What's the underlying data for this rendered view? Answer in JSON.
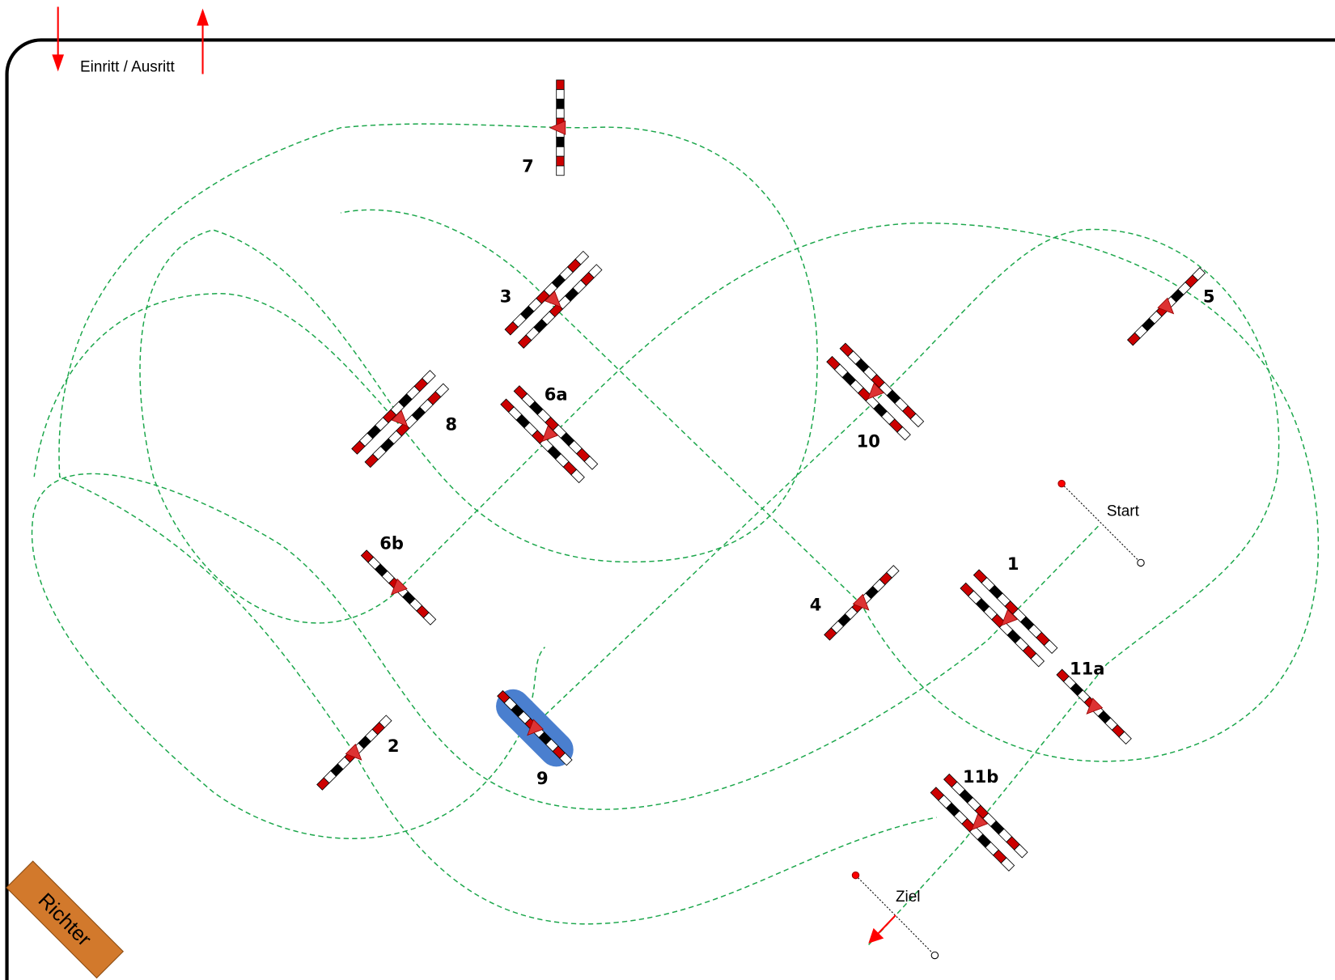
{
  "header": {
    "entry_label": "Einritt / Ausritt"
  },
  "nodes": [
    {
      "label": "7"
    },
    {
      "label": "3"
    },
    {
      "label": "8"
    },
    {
      "label": "6a"
    },
    {
      "label": "10"
    },
    {
      "label": "5"
    },
    {
      "label": "6b"
    },
    {
      "label": "4"
    },
    {
      "label": "1"
    },
    {
      "label": "2"
    },
    {
      "label": "9"
    },
    {
      "label": "11a"
    },
    {
      "label": "11b"
    }
  ],
  "start_label": "Start",
  "finish_label": "Ziel",
  "judge_label": "Richter"
}
